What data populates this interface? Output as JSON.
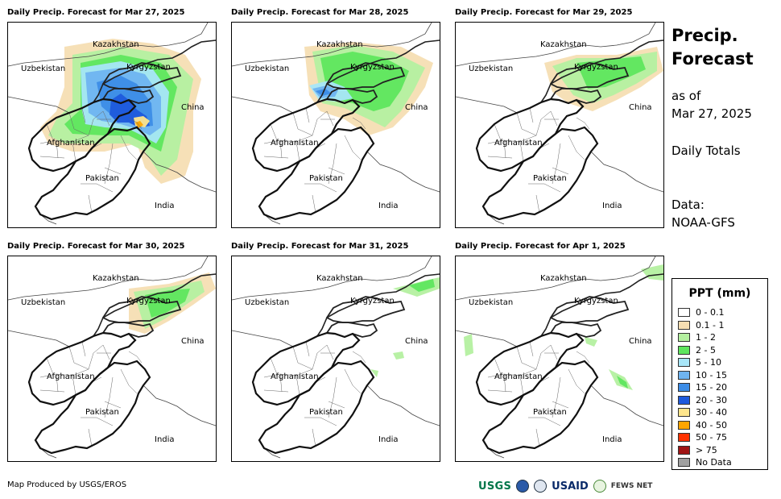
{
  "panels": [
    {
      "title": "Daily Precip. Forecast for Mar 27, 2025",
      "intensity": 4
    },
    {
      "title": "Daily Precip. Forecast for Mar 28, 2025",
      "intensity": 3
    },
    {
      "title": "Daily Precip. Forecast for Mar 29, 2025",
      "intensity": 2
    },
    {
      "title": "Daily Precip. Forecast for Mar 30, 2025",
      "intensity": 2
    },
    {
      "title": "Daily Precip. Forecast for Mar 31, 2025",
      "intensity": 1
    },
    {
      "title": "Daily Precip. Forecast for Apr 1, 2025",
      "intensity": 1
    }
  ],
  "map_labels": {
    "kazakhstan": "Kazakhstan",
    "uzbekistan": "Uzbekistan",
    "kyrgyzstan": "Kyrgyzstan",
    "china": "China",
    "afghanistan": "Afghanistan",
    "pakistan": "Pakistan",
    "india": "India"
  },
  "side": {
    "title_line1": "Precip.",
    "title_line2": "Forecast",
    "asof_line1": "as of",
    "asof_line2": "Mar 27, 2025",
    "totals": "Daily Totals",
    "data_line1": "Data:",
    "data_line2": "NOAA-GFS"
  },
  "legend": {
    "title": "PPT (mm)",
    "items": [
      {
        "label": "0 - 0.1",
        "color": "#ffffff"
      },
      {
        "label": "0.1 - 1",
        "color": "#f5deb3"
      },
      {
        "label": "1 - 2",
        "color": "#b4f0a0"
      },
      {
        "label": "2 - 5",
        "color": "#5ee65e"
      },
      {
        "label": "5 - 10",
        "color": "#a8e6f8"
      },
      {
        "label": "10 - 15",
        "color": "#6fb4f0"
      },
      {
        "label": "15 - 20",
        "color": "#3c8ce6"
      },
      {
        "label": "20 - 30",
        "color": "#1e5adc"
      },
      {
        "label": "30 - 40",
        "color": "#ffe68c"
      },
      {
        "label": "40 - 50",
        "color": "#ffa500"
      },
      {
        "label": "50 - 75",
        "color": "#ff3200"
      },
      {
        "label": "> 75",
        "color": "#a01414"
      },
      {
        "label": "No Data",
        "color": "#a0a0a0"
      }
    ]
  },
  "footer": {
    "produced_by": "Map Produced by USGS/EROS"
  },
  "logos": {
    "usgs": "USGS",
    "usaid": "USAID",
    "fews": "FEWS NET"
  }
}
